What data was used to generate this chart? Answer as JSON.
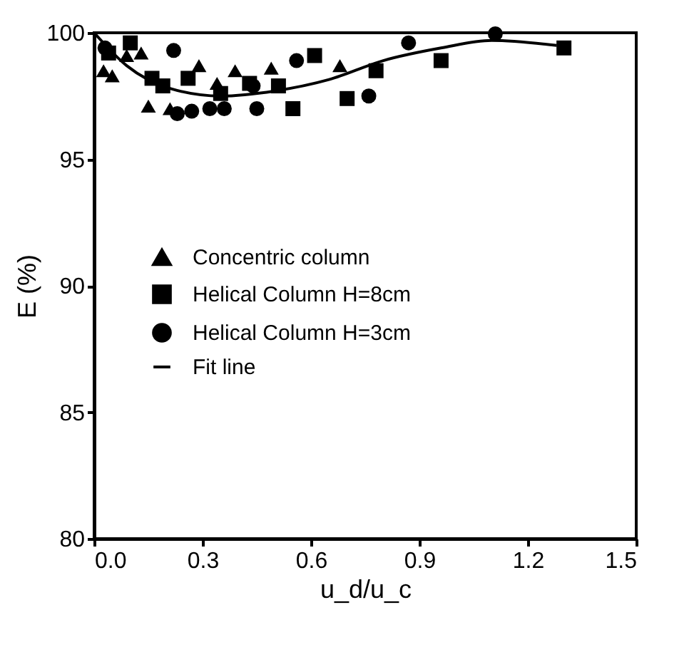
{
  "chart_data": {
    "type": "scatter",
    "xlabel": "u_d/u_c",
    "ylabel": "E (%)",
    "xlim": [
      0,
      1.5
    ],
    "ylim": [
      80,
      100
    ],
    "xticks": [
      {
        "value": 0,
        "label": "0.0"
      },
      {
        "value": 0.3,
        "label": "0.3"
      },
      {
        "value": 0.6,
        "label": "0.6"
      },
      {
        "value": 0.9,
        "label": "0.9"
      },
      {
        "value": 1.2,
        "label": "1.2"
      },
      {
        "value": 1.5,
        "label": "1.5"
      }
    ],
    "yticks": [
      80,
      85,
      90,
      95,
      100
    ],
    "grid": false,
    "legend": "left",
    "series": [
      {
        "name": "Concentric column",
        "color": "#000000",
        "marker": "triangle",
        "x": [
          0.026,
          0.05,
          0.09,
          0.13,
          0.15,
          0.21,
          0.29,
          0.34,
          0.39,
          0.49,
          0.68
        ],
        "values": [
          98.5,
          98.3,
          99.1,
          99.2,
          97.1,
          97.0,
          98.7,
          98.0,
          98.5,
          98.6,
          98.7
        ]
      },
      {
        "name": "Helical Column H=8cm",
        "color": "#000000",
        "marker": "square",
        "x": [
          0.04,
          0.1,
          0.16,
          0.19,
          0.26,
          0.35,
          0.43,
          0.51,
          0.55,
          0.61,
          0.7,
          0.78,
          0.96,
          1.3
        ],
        "values": [
          99.2,
          99.6,
          98.2,
          97.9,
          98.2,
          97.6,
          98.0,
          97.9,
          97.0,
          99.1,
          97.4,
          98.5,
          98.9,
          99.4
        ]
      },
      {
        "name": "Helical Column H=3cm",
        "color": "#000000",
        "marker": "circle",
        "x": [
          0.03,
          0.22,
          0.23,
          0.27,
          0.32,
          0.36,
          0.44,
          0.45,
          0.56,
          0.76,
          0.87,
          1.11
        ],
        "values": [
          99.4,
          99.3,
          96.8,
          96.9,
          97.0,
          97.0,
          97.9,
          97.0,
          98.9,
          97.5,
          99.6,
          99.96
        ]
      },
      {
        "name": "Fit line",
        "color": "#000000",
        "type": "line",
        "line_style": "solid",
        "marker": "none",
        "x": [
          0,
          0.09,
          0.21,
          0.35,
          0.5,
          0.65,
          0.8,
          0.96,
          1.1,
          1.28
        ],
        "values": [
          100,
          98.7,
          97.8,
          97.5,
          97.7,
          98.15,
          98.9,
          99.4,
          99.7,
          99.5
        ]
      }
    ]
  }
}
